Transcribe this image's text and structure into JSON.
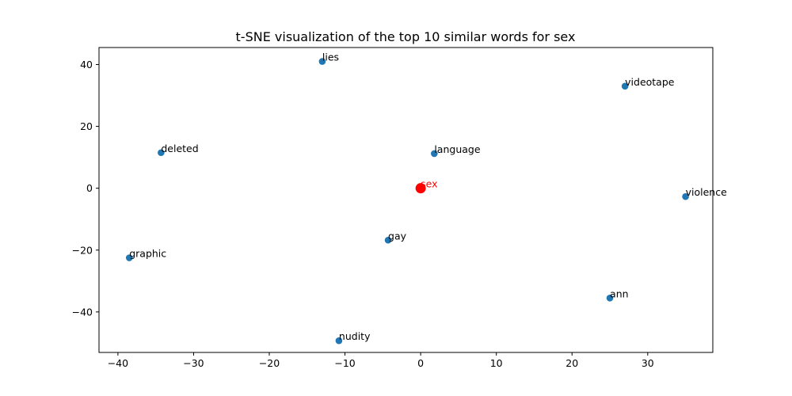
{
  "chart_data": {
    "type": "scatter",
    "title": "t-SNE visualization of the top 10 similar words for sex",
    "xlabel": "",
    "ylabel": "",
    "xlim": [
      -42.5,
      38.6
    ],
    "ylim": [
      -53.1,
      45.5
    ],
    "xticks": [
      -40,
      -30,
      -20,
      -10,
      0,
      10,
      20,
      30
    ],
    "yticks": [
      -40,
      -20,
      0,
      20,
      40
    ],
    "xtick_labels": [
      "−40",
      "−30",
      "−20",
      "−10",
      "0",
      "10",
      "20",
      "30"
    ],
    "ytick_labels": [
      "−40",
      "−20",
      "0",
      "20",
      "40"
    ],
    "grid": false,
    "point_color": "#1f77b4",
    "highlight_color": "#ff0000",
    "points": [
      {
        "label": "lies",
        "x": -13.0,
        "y": 41.0,
        "highlight": false
      },
      {
        "label": "videotape",
        "x": 27.0,
        "y": 33.0,
        "highlight": false
      },
      {
        "label": "deleted",
        "x": -34.3,
        "y": 11.5,
        "highlight": false
      },
      {
        "label": "language",
        "x": 1.8,
        "y": 11.2,
        "highlight": false
      },
      {
        "label": "sex",
        "x": 0.0,
        "y": 0.0,
        "highlight": true
      },
      {
        "label": "violence",
        "x": 35.0,
        "y": -2.7,
        "highlight": false
      },
      {
        "label": "gay",
        "x": -4.3,
        "y": -16.8,
        "highlight": false
      },
      {
        "label": "graphic",
        "x": -38.5,
        "y": -22.5,
        "highlight": false
      },
      {
        "label": "ann",
        "x": 25.0,
        "y": -35.5,
        "highlight": false
      },
      {
        "label": "nudity",
        "x": -10.8,
        "y": -49.3,
        "highlight": false
      }
    ]
  }
}
